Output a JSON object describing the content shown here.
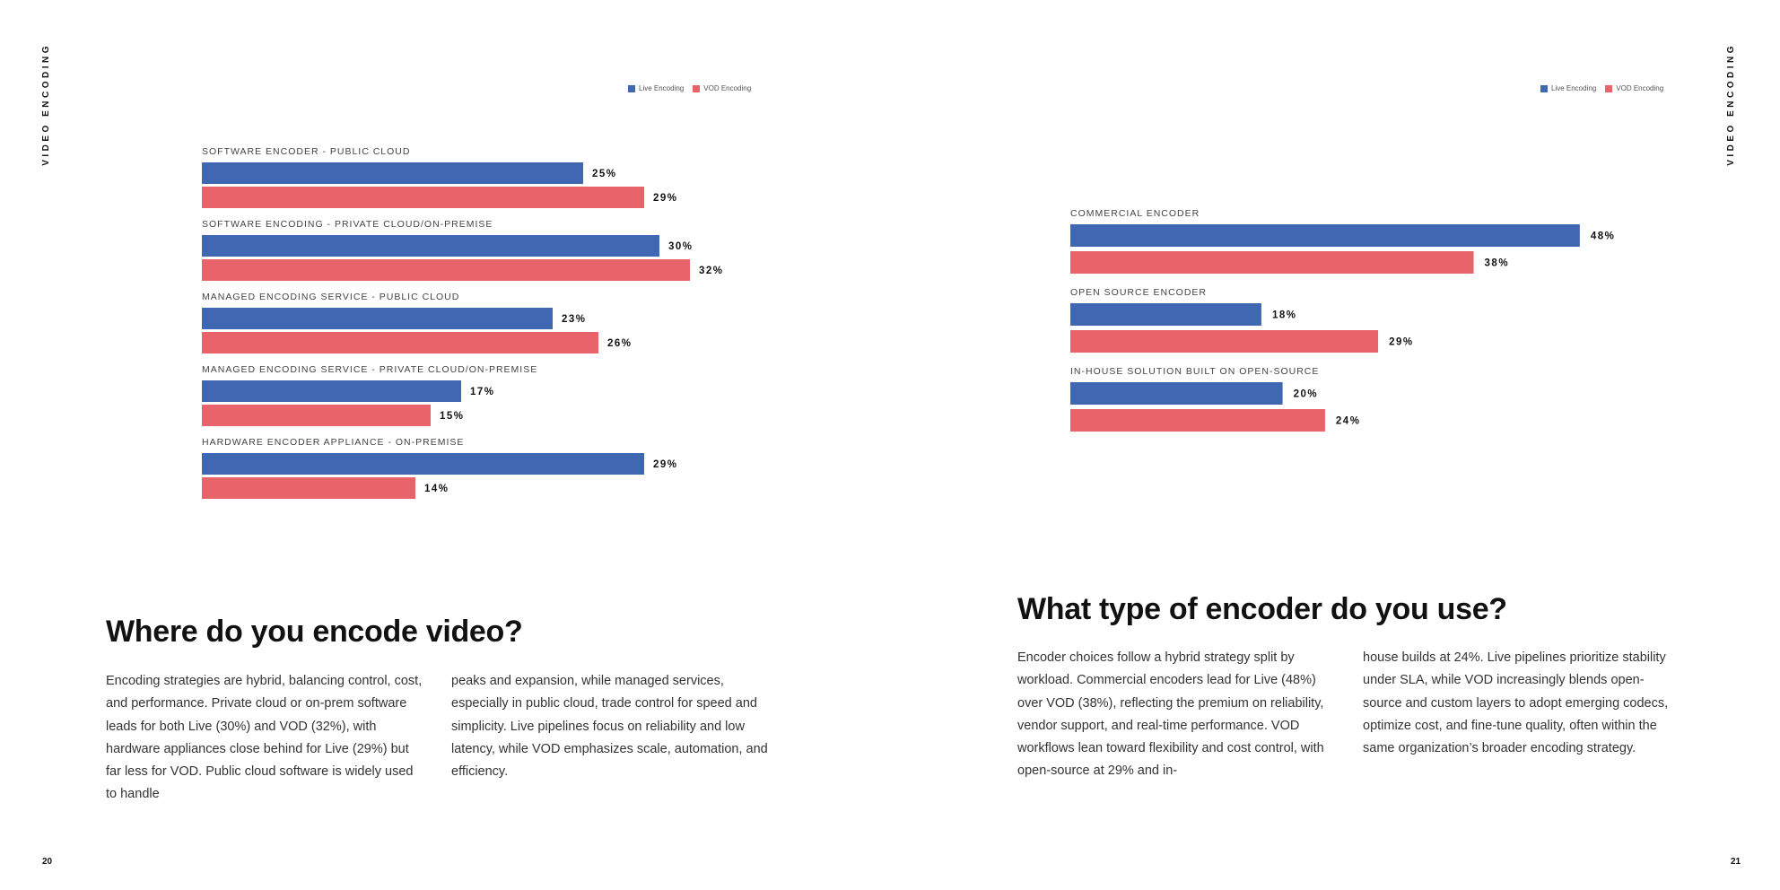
{
  "section_label": "VIDEO ENCODING",
  "colors": {
    "live": "#3f67b2",
    "vod": "#e8636a",
    "text": "#111111",
    "muted": "#444444"
  },
  "left_page": {
    "page_number": "20",
    "heading": "Where do you encode video?",
    "body": [
      "Encoding strategies are hybrid, balancing control, cost, and performance. Private cloud or on-prem software leads for both Live (30%) and VOD (32%), with hardware appliances close behind for Live (29%) but far less for VOD. Public cloud software is widely used to handle",
      "peaks and expansion, while managed services, especially in public cloud, trade control for speed and simplicity. Live pipelines focus on reliability and low latency, while VOD emphasizes scale, automation, and efficiency."
    ]
  },
  "right_page": {
    "page_number": "21",
    "heading": "What type of encoder do you use?",
    "body": [
      "Encoder choices follow a hybrid strategy split by workload. Commercial encoders lead for Live (48%) over VOD (38%), reflecting the premium on reliability, vendor support, and real-time performance. VOD workflows lean toward flexibility and cost control, with open-source at 29% and in-",
      "house builds at 24%. Live pipelines prioritize stability under SLA, while VOD increasingly blends open-source and custom layers to adopt emerging codecs, optimize cost, and fine-tune quality, often within the same organization’s broader encoding strategy."
    ]
  },
  "chart_data": [
    {
      "type": "bar",
      "orientation": "horizontal",
      "title": "Where do you encode video?",
      "legend": [
        "Live Encoding",
        "VOD Encoding"
      ],
      "legend_position": "top-right",
      "categories": [
        "SOFTWARE ENCODER - PUBLIC CLOUD",
        "SOFTWARE ENCODING - PRIVATE CLOUD/ON-PREMISE",
        "MANAGED ENCODING SERVICE - PUBLIC CLOUD",
        "MANAGED ENCODING SERVICE - PRIVATE CLOUD/ON-PREMISE",
        "HARDWARE ENCODER APPLIANCE - ON-PREMISE"
      ],
      "series": [
        {
          "name": "Live Encoding",
          "values": [
            25,
            30,
            23,
            17,
            29
          ],
          "labels": [
            "25%",
            "30%",
            "23%",
            "17%",
            "29%"
          ]
        },
        {
          "name": "VOD Encoding",
          "values": [
            29,
            32,
            26,
            15,
            14
          ],
          "labels": [
            "29%",
            "32%",
            "26%",
            "15%",
            "14%"
          ]
        }
      ],
      "xlim": [
        0,
        50
      ],
      "grid": false
    },
    {
      "type": "bar",
      "orientation": "horizontal",
      "title": "What type of encoder do you use?",
      "legend": [
        "Live Encoding",
        "VOD Encoding"
      ],
      "legend_position": "top-right",
      "categories": [
        "COMMERCIAL ENCODER",
        "OPEN SOURCE ENCODER",
        "IN-HOUSE SOLUTION BUILT ON OPEN-SOURCE"
      ],
      "series": [
        {
          "name": "Live Encoding",
          "values": [
            48,
            18,
            20
          ],
          "labels": [
            "48%",
            "18%",
            "20%"
          ]
        },
        {
          "name": "VOD Encoding",
          "values": [
            38,
            29,
            24
          ],
          "labels": [
            "38%",
            "29%",
            "24%"
          ]
        }
      ],
      "xlim": [
        0,
        50
      ],
      "grid": false
    }
  ]
}
